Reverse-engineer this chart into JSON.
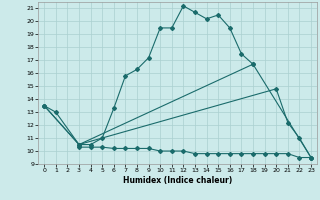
{
  "xlabel": "Humidex (Indice chaleur)",
  "bg_color": "#cceaea",
  "grid_color": "#aad0d0",
  "line_color": "#1a6b6b",
  "xlim": [
    -0.5,
    23.5
  ],
  "ylim": [
    9,
    21.5
  ],
  "yticks": [
    9,
    10,
    11,
    12,
    13,
    14,
    15,
    16,
    17,
    18,
    19,
    20,
    21
  ],
  "xticks": [
    0,
    1,
    2,
    3,
    4,
    5,
    6,
    7,
    8,
    9,
    10,
    11,
    12,
    13,
    14,
    15,
    16,
    17,
    18,
    19,
    20,
    21,
    22,
    23
  ],
  "curve1_x": [
    0,
    1,
    3,
    4,
    5,
    6,
    7,
    8,
    9,
    10,
    11,
    12,
    13,
    14,
    15,
    16,
    17,
    18
  ],
  "curve1_y": [
    13.5,
    13.0,
    10.5,
    10.5,
    11.0,
    13.3,
    15.8,
    16.3,
    17.2,
    19.5,
    19.5,
    21.2,
    20.7,
    20.2,
    20.5,
    19.5,
    17.5,
    16.7
  ],
  "curve2_x": [
    3,
    4,
    5,
    6,
    7,
    8,
    9,
    10,
    11,
    12,
    13,
    14,
    15,
    16,
    17,
    18,
    19,
    20,
    21,
    22,
    23
  ],
  "curve2_y": [
    10.3,
    10.3,
    10.3,
    10.2,
    10.2,
    10.2,
    10.2,
    10.0,
    10.0,
    10.0,
    9.8,
    9.8,
    9.8,
    9.8,
    9.8,
    9.8,
    9.8,
    9.8,
    9.8,
    9.5,
    9.5
  ],
  "curve3_x": [
    0,
    3,
    20,
    21,
    22,
    23
  ],
  "curve3_y": [
    13.5,
    10.5,
    14.8,
    12.2,
    11.0,
    9.5
  ],
  "curve4_x": [
    0,
    3,
    18,
    23
  ],
  "curve4_y": [
    13.5,
    10.5,
    16.7,
    9.5
  ]
}
